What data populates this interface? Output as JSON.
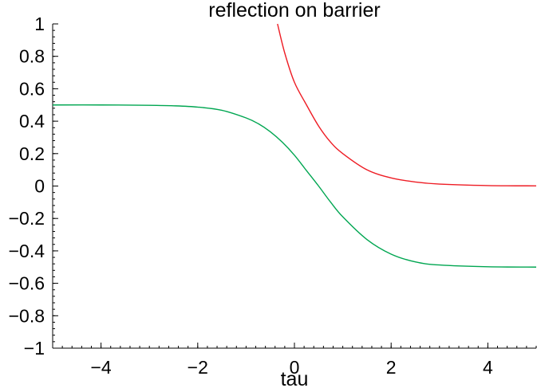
{
  "chart_data": {
    "type": "line",
    "title": "reflection on barrier",
    "xlabel": "tau",
    "ylabel": "",
    "xlim": [
      -5,
      5
    ],
    "ylim": [
      -1,
      1
    ],
    "x_ticks": [
      -4,
      -2,
      0,
      2,
      4
    ],
    "x_tick_labels": [
      "−4",
      "−2",
      "0",
      "2",
      "4"
    ],
    "y_ticks": [
      1,
      0.8,
      0.6,
      0.4,
      0.2,
      0,
      -0.2,
      -0.4,
      -0.6,
      -0.8,
      -1
    ],
    "y_tick_labels": [
      "1",
      "0.8",
      "0.6",
      "0.4",
      "0.2",
      "0",
      "−0.2",
      "−0.4",
      "−0.6",
      "−0.8",
      "−1"
    ],
    "x_minor_step": 0.2,
    "y_minor_step": 0.04,
    "grid": false,
    "series": [
      {
        "color": "#00a651",
        "x": [
          -5,
          -4,
          -3,
          -2.5,
          -2,
          -1.5,
          -1,
          -0.75,
          -0.5,
          -0.25,
          0,
          0.25,
          0.5,
          0.75,
          1,
          1.5,
          2,
          2.5,
          3,
          4,
          5
        ],
        "y": [
          0.5,
          0.5,
          0.498,
          0.495,
          0.487,
          0.467,
          0.42,
          0.385,
          0.335,
          0.27,
          0.19,
          0.095,
          0.0,
          -0.1,
          -0.19,
          -0.33,
          -0.42,
          -0.468,
          -0.487,
          -0.498,
          -0.5
        ]
      },
      {
        "color": "#ee1c24",
        "x": [
          -0.35,
          -0.2,
          0,
          0.25,
          0.5,
          0.75,
          1,
          1.5,
          2,
          2.5,
          3,
          4,
          5
        ],
        "y": [
          1.0,
          0.82,
          0.64,
          0.5,
          0.37,
          0.27,
          0.2,
          0.1,
          0.05,
          0.025,
          0.012,
          0.003,
          0.001
        ]
      }
    ]
  }
}
